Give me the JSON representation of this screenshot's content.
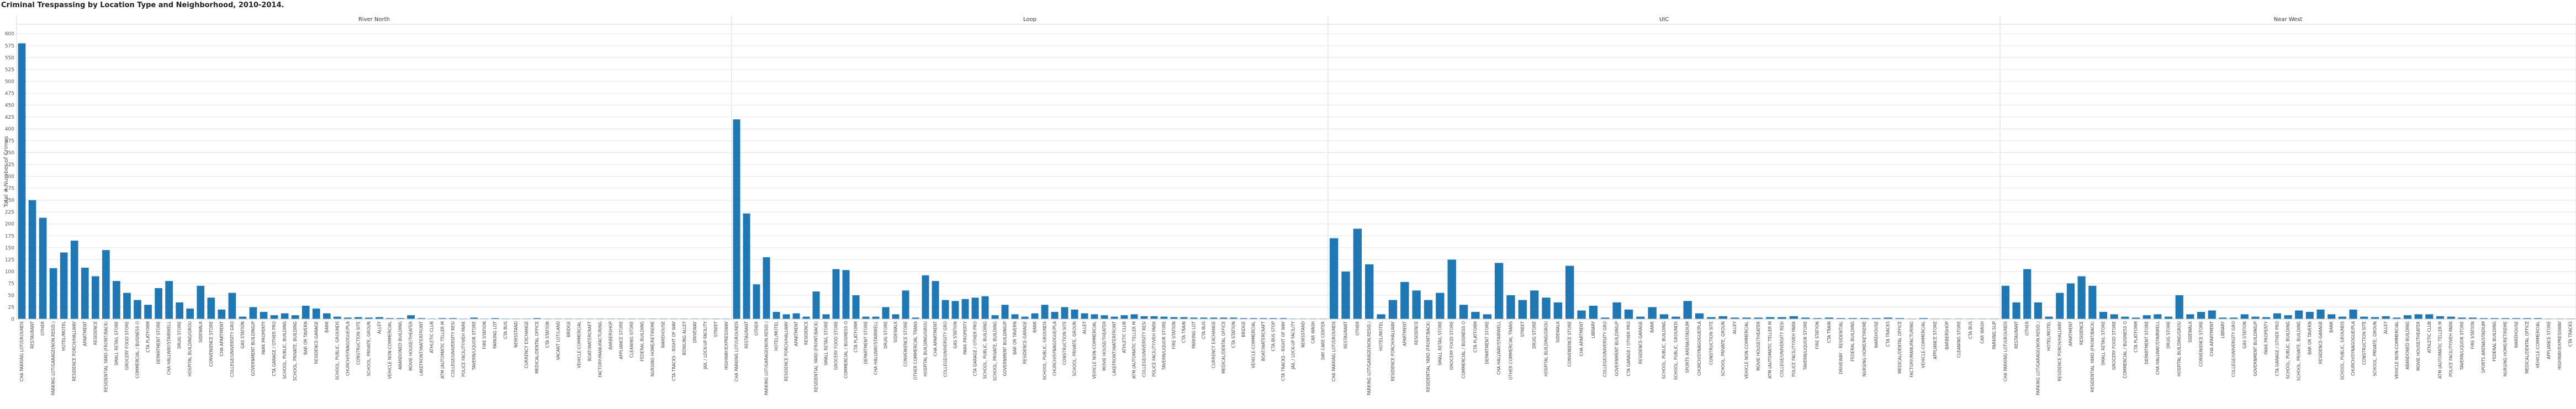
{
  "chart_data": {
    "type": "bar",
    "title": "Criminal Trespassing by Location Type and Neighborhood, 2010-2014.",
    "ylabel": "Total # Number of Crimes",
    "xlabel": "",
    "ylim": [
      0,
      620
    ],
    "yticks": [
      0,
      25,
      50,
      75,
      100,
      125,
      150,
      175,
      200,
      225,
      250,
      275,
      300,
      325,
      350,
      375,
      400,
      425,
      450,
      475,
      500,
      525,
      550,
      575,
      600
    ],
    "grid": true,
    "legend": "none",
    "bar_color": "#1f77b4",
    "panels": [
      {
        "name": "River North",
        "categories": [
          "CHA PARKING LOT/GROUNDS",
          "RESTAURANT",
          "OTHER",
          "PARKING LOT/GARAGE(NON.RESID.)",
          "HOTEL/MOTEL",
          "RESIDENCE PORCH/HALLWAY",
          "APARTMENT",
          "RESIDENCE",
          "RESIDENTIAL YARD (FRONT/BACK)",
          "SMALL RETAIL STORE",
          "GROCERY FOOD STORE",
          "COMMERCIAL / BUSINESS O",
          "CTA PLATFORM",
          "DEPARTMENT STORE",
          "CHA HALLWAY/STAIRWELL",
          "DRUG STORE",
          "HOSPITAL BUILDING/GROU",
          "SIDEWALK",
          "CONVENIENCE STORE",
          "CHA APARTMENT",
          "COLLEGE/UNIVERSITY GRO",
          "GAS STATION",
          "GOVERNMENT BUILDING/P",
          "PARK PROPERTY",
          "CTA GARAGE / OTHER PRO",
          "SCHOOL, PUBLIC, BUILDING",
          "SCHOOL, PRIVATE, BUILDING",
          "BAR OR TAVERN",
          "RESIDENCE-GARAGE",
          "BANK",
          "SCHOOL, PUBLIC, GROUNDS",
          "CHURCH/SYNAGOGUE/PLA",
          "CONSTRUCTION SITE",
          "SCHOOL, PRIVATE, GROUN",
          "ALLEY",
          "VEHICLE NON-COMMERCIAL",
          "ABANDONED BUILDING",
          "MOVIE HOUSE/THEATER",
          "LAKEFRONT/WATERFRONT",
          "ATHLETIC CLUB",
          "ATM (AUTOMATIC TELLER M",
          "COLLEGE/UNIVERSITY RESI",
          "POLICE FACILITY/VEH PARK",
          "TAVERN/LIQUOR STORE",
          "FIRE STATION",
          "PARKING LOT",
          "CTA BUS",
          "NEWSSTAND",
          "CURRENCY EXCHANGE",
          "MEDICAL/DENTAL OFFICE",
          "CTA STATION",
          "VACANT LOT/LAND",
          "BRIDGE",
          "VEHICLE-COMMERCIAL",
          "BOAT/WATERCRAFT",
          "FACTORY/MANUFACTURING",
          "BARBERSHOP",
          "APPLIANCE STORE",
          "CLEANING STORE",
          "FEDERAL BUILDING",
          "NURSING HOME/RETIREME",
          "WAREHOUSE",
          "CTA TRACKS - RIGHT OF WAY",
          "BOWLING ALLEY",
          "DRIVEWAY",
          "JAIL / LOCK-UP FACILITY",
          "STREET",
          "HIGHWAY/EXPRESSWAY"
        ],
        "values": [
          580,
          250,
          213,
          107,
          140,
          165,
          108,
          90,
          145,
          80,
          55,
          40,
          30,
          65,
          80,
          35,
          22,
          70,
          45,
          20,
          55,
          5,
          25,
          15,
          8,
          12,
          8,
          28,
          22,
          12,
          5,
          3,
          4,
          3,
          4,
          2,
          2,
          8,
          2,
          1,
          2,
          2,
          1,
          3,
          1,
          2,
          1,
          1,
          1,
          2,
          1,
          1,
          1,
          1,
          1,
          1,
          1,
          1,
          1,
          1,
          1,
          1,
          1,
          1,
          1,
          1,
          1,
          1
        ]
      },
      {
        "name": "Loop",
        "categories": [
          "CHA PARKING LOT/GROUNDS",
          "RESTAURANT",
          "OTHER",
          "PARKING LOT/GARAGE(NON.RESID.)",
          "HOTEL/MOTEL",
          "RESIDENCE PORCH/HALLWAY",
          "APARTMENT",
          "RESIDENCE",
          "RESIDENTIAL YARD (FRONT/BACK)",
          "SMALL RETAIL STORE",
          "GROCERY FOOD STORE",
          "COMMERCIAL / BUSINESS O",
          "CTA PLATFORM",
          "DEPARTMENT STORE",
          "CHA HALLWAY/STAIRWELL",
          "DRUG STORE",
          "SIDEWALK",
          "CONVENIENCE STORE",
          "OTHER COMMERCIAL TRANS",
          "HOSPITAL BUILDING/GROU",
          "CHA APARTMENT",
          "COLLEGE/UNIVERSITY GRO",
          "GAS STATION",
          "PARK PROPERTY",
          "CTA GARAGE / OTHER PRO",
          "SCHOOL, PUBLIC, BUILDING",
          "SCHOOL, PRIVATE, BUILDING",
          "GOVERNMENT BUILDING/P",
          "BAR OR TAVERN",
          "RESIDENCE-GARAGE",
          "BANK",
          "SCHOOL, PUBLIC, GROUNDS",
          "CHURCH/SYNAGOGUE/PLA",
          "CONSTRUCTION SITE",
          "SCHOOL, PRIVATE, GROUN",
          "ALLEY",
          "VEHICLE NON-COMMERCIAL",
          "MOVIE HOUSE/THEATER",
          "LAKEFRONT/WATERFRONT",
          "ATHLETIC CLUB",
          "ATM (AUTOMATIC TELLER M",
          "COLLEGE/UNIVERSITY RESI",
          "POLICE FACILITY/VEH PARK",
          "TAVERN/LIQUOR STORE",
          "FIRE STATION",
          "CTA TRAIN",
          "PARKING LOT",
          "CTA BUS",
          "CURRENCY EXCHANGE",
          "MEDICAL/DENTAL OFFICE",
          "CTA STATION",
          "BRIDGE",
          "VEHICLE-COMMERCIAL",
          "BOAT/WATERCRAFT",
          "CTA BUS STOP",
          "CTA TRACKS - RIGHT OF WAY",
          "JAIL / LOCK-UP FACILITY",
          "NEWSSTAND",
          "CAR WASH",
          "DAY CARE CENTER"
        ],
        "values": [
          420,
          222,
          73,
          130,
          15,
          10,
          12,
          5,
          58,
          10,
          105,
          103,
          50,
          5,
          5,
          25,
          10,
          60,
          3,
          92,
          80,
          40,
          38,
          42,
          45,
          48,
          8,
          30,
          10,
          5,
          12,
          30,
          15,
          25,
          20,
          12,
          10,
          8,
          5,
          8,
          10,
          6,
          6,
          5,
          4,
          4,
          3,
          3,
          3,
          3,
          3,
          2,
          2,
          2,
          2,
          2,
          1,
          1,
          1,
          1
        ]
      },
      {
        "name": "UIC",
        "categories": [
          "CHA PARKING LOT/GROUNDS",
          "RESTAURANT",
          "OTHER",
          "PARKING LOT/GARAGE(NON.RESID.)",
          "HOTEL/MOTEL",
          "RESIDENCE PORCH/HALLWAY",
          "APARTMENT",
          "RESIDENCE",
          "RESIDENTIAL YARD (FRONT/BACK)",
          "SMALL RETAIL STORE",
          "GROCERY FOOD STORE",
          "COMMERCIAL / BUSINESS O",
          "CTA PLATFORM",
          "DEPARTMENT STORE",
          "CHA HALLWAY/STAIRWELL",
          "OTHER COMMERCIAL TRANS",
          "STREET",
          "DRUG STORE",
          "HOSPITAL BUILDING/GROU",
          "SIDEWALK",
          "CONVENIENCE STORE",
          "CHA APARTMENT",
          "LIBRARY",
          "COLLEGE/UNIVERSITY GRO",
          "GOVERNMENT BUILDING/P",
          "CTA GARAGE / OTHER PRO",
          "RESIDENCE-GARAGE",
          "BANK",
          "SCHOOL, PUBLIC, BUILDING",
          "SCHOOL, PUBLIC, GROUNDS",
          "SPORTS ARENA/STADIUM",
          "CHURCH/SYNAGOGUE/PLA",
          "CONSTRUCTION SITE",
          "SCHOOL, PRIVATE, GROUN",
          "ALLEY",
          "VEHICLE NON-COMMERCIAL",
          "MOVIE HOUSE/THEATER",
          "ATM (AUTOMATIC TELLER M",
          "COLLEGE/UNIVERSITY RESI",
          "POLICE FACILITY/VEH PARK",
          "TAVERN/LIQUOR STORE",
          "FIRE STATION",
          "CTA TRAIN",
          "DRIVEWAY - RESIDENTIAL",
          "FEDERAL BUILDING",
          "NURSING HOME/RETIREME",
          "WAREHOUSE",
          "CTA TRACKS",
          "MEDICAL/DENTAL OFFICE",
          "FACTORY/MANUFACTURING",
          "VEHICLE-COMMERCIAL",
          "APPLIANCE STORE",
          "BARBERSHOP",
          "CLEANING STORE",
          "CTA BUS",
          "CAR WASH",
          "PARKING SLIP"
        ],
        "values": [
          170,
          100,
          190,
          115,
          10,
          40,
          78,
          60,
          40,
          55,
          125,
          30,
          15,
          10,
          118,
          50,
          40,
          60,
          45,
          35,
          112,
          18,
          28,
          3,
          35,
          20,
          5,
          25,
          10,
          5,
          38,
          12,
          4,
          6,
          3,
          3,
          3,
          4,
          4,
          6,
          3,
          2,
          3,
          2,
          2,
          2,
          2,
          3,
          2,
          1,
          2,
          1,
          1,
          1,
          1,
          1,
          1
        ]
      },
      {
        "name": "Near West",
        "categories": [
          "CHA PARKING LOT/GROUNDS",
          "RESTAURANT",
          "OTHER",
          "PARKING LOT/GARAGE(NON.RESID.)",
          "HOTEL/MOTEL",
          "RESIDENCE PORCH/HALLWAY",
          "APARTMENT",
          "RESIDENCE",
          "RESIDENTIAL YARD (FRONT/BACK)",
          "SMALL RETAIL STORE",
          "GROCERY FOOD STORE",
          "COMMERCIAL / BUSINESS O",
          "CTA PLATFORM",
          "DEPARTMENT STORE",
          "CHA HALLWAY/STAIRWELL",
          "DRUG STORE",
          "HOSPITAL BUILDING/GROU",
          "SIDEWALK",
          "CONVENIENCE STORE",
          "CHA APARTMENT",
          "LIBRARY",
          "COLLEGE/UNIVERSITY GRO",
          "GAS STATION",
          "GOVERNMENT BUILDING/P",
          "PARK PROPERTY",
          "CTA GARAGE / OTHER PRO",
          "SCHOOL, PUBLIC, BUILDING",
          "SCHOOL, PRIVATE, BUILDING",
          "BAR OR TAVERN",
          "RESIDENCE-GARAGE",
          "BANK",
          "SCHOOL, PUBLIC, GROUNDS",
          "CHURCH/SYNAGOGUE/PLA",
          "CONSTRUCTION SITE",
          "SCHOOL, PRIVATE, GROUN",
          "ALLEY",
          "VEHICLE NON-COMMERCIAL",
          "ABANDONED BUILDING",
          "MOVIE HOUSE/THEATER",
          "ATHLETIC CLUB",
          "ATM (AUTOMATIC TELLER M",
          "POLICE FACILITY/VEH PARK",
          "TAVERN/LIQUOR STORE",
          "FIRE STATION",
          "SPORTS ARENA/STADIUM",
          "FEDERAL BUILDING",
          "NURSING HOME/RETIREME",
          "WAREHOUSE",
          "MEDICAL/DENTAL OFFICE",
          "VEHICLE-COMMERCIAL",
          "APPLIANCE STORE",
          "HIGHWAY/EXPRESSWAY",
          "CTA TRACKS"
        ],
        "values": [
          70,
          35,
          105,
          35,
          5,
          55,
          75,
          90,
          70,
          15,
          10,
          5,
          3,
          8,
          10,
          5,
          50,
          10,
          15,
          18,
          3,
          3,
          10,
          5,
          4,
          12,
          8,
          18,
          15,
          20,
          10,
          5,
          20,
          5,
          4,
          6,
          3,
          8,
          10,
          10,
          6,
          5,
          3,
          3,
          2,
          2,
          2,
          2,
          2,
          2,
          1,
          1,
          1
        ]
      }
    ]
  }
}
